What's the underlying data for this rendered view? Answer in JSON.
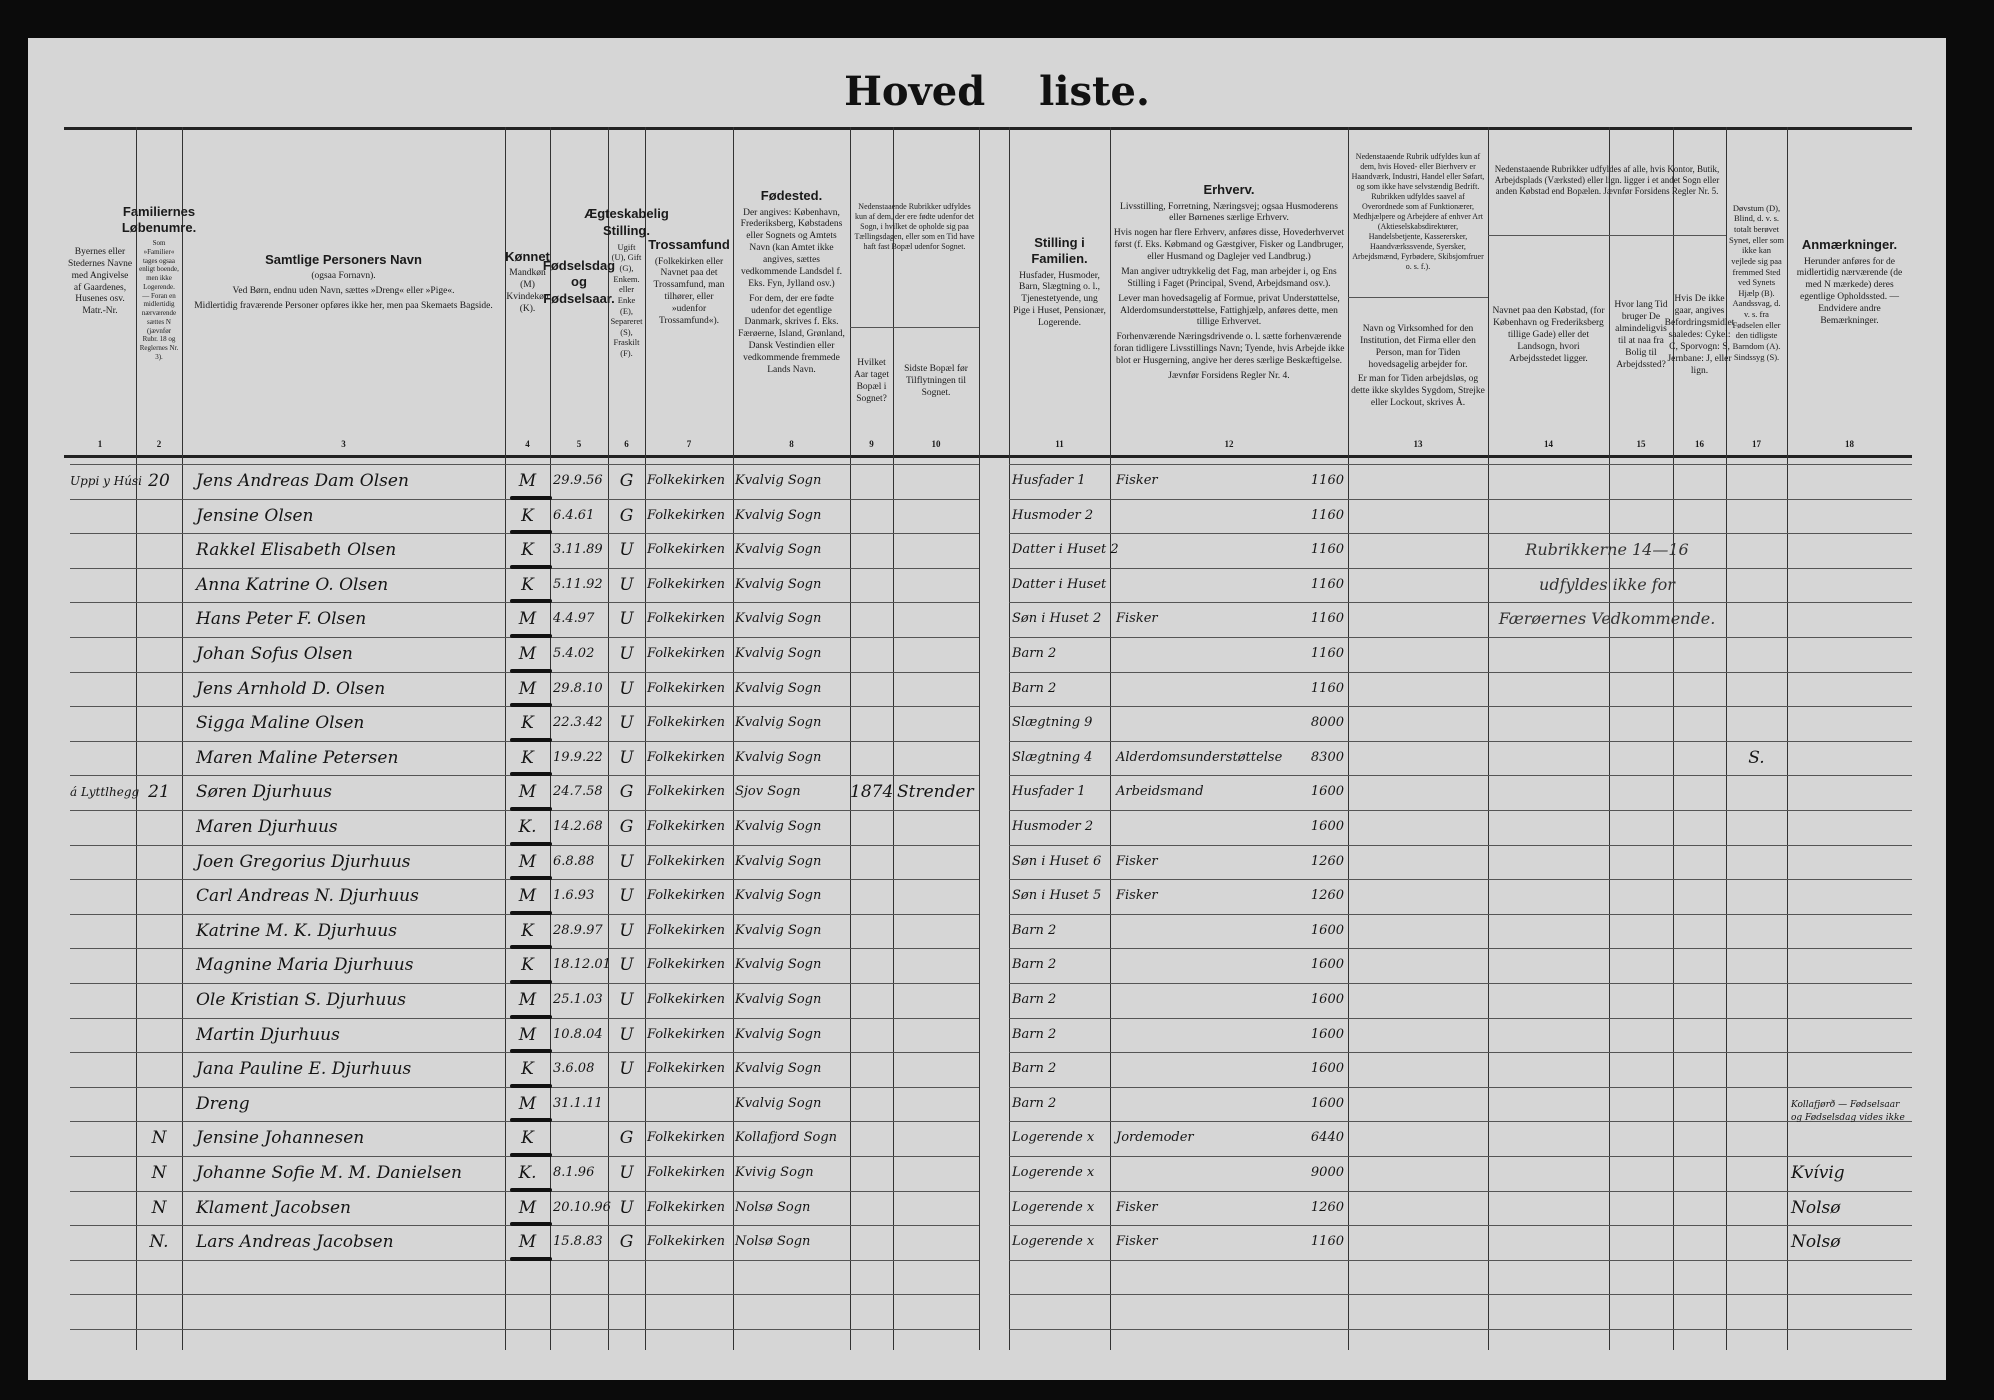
{
  "title": "Hoved liste.",
  "header": {
    "columns": [
      {
        "num": "1",
        "title": "",
        "text": [
          "Byernes eller Stedernes Navne med Angivelse af Gaardenes, Husenes osv. Matr.-Nr."
        ]
      },
      {
        "num": "2",
        "title": "Familiernes Løbenumre.",
        "text": [
          "Som »Familier« tages ogsaa enligt boende, men ikke Logerende. — Foran en midlertidig nærværende sættes N (jævnfør Rubr. 18 og Reglernes Nr. 3)."
        ]
      },
      {
        "num": "3",
        "title": "Samtlige Personers Navn",
        "text": [
          "(ogsaa Fornavn).",
          "Ved Børn, endnu uden Navn, sættes »Dreng« eller »Pige«.",
          "Midlertidig fraværende Personer opføres ikke her, men paa Skemaets Bagside."
        ]
      },
      {
        "num": "4",
        "title": "Kønnet",
        "text": [
          "Mandkøn (M) Kvindekøn (K)."
        ]
      },
      {
        "num": "5",
        "title": "Fødselsdag og Fødselsaar.",
        "text": []
      },
      {
        "num": "6",
        "title": "Ægteskabelig Stilling.",
        "text": [
          "Ugift (U), Gift (G), Enkem. eller Enke (E), Separeret (S), Fraskilt (F)."
        ]
      },
      {
        "num": "7",
        "title": "Trossamfund",
        "text": [
          "(Folkekirken eller Navnet paa det Trossamfund, man tilhører, eller »udenfor Trossamfund«)."
        ]
      },
      {
        "num": "8",
        "title": "Fødested.",
        "text": [
          "Der angives: København, Frederiksberg, Købstadens eller Sognets og Amtets Navn (kan Amtet ikke angives, sættes vedkommende Landsdel f. Eks. Fyn, Jylland osv.)",
          "For dem, der ere fødte udenfor det egentlige Danmark, skrives f. Eks. Færøerne, Island, Grønland, Dansk Vestindien eller vedkommende fremmede Lands Navn."
        ]
      },
      {
        "num": "9",
        "title": "",
        "text": [
          "Hvilket Aar taget Bopæl i Sognet?"
        ]
      },
      {
        "num": "10",
        "title": "",
        "text": [
          "Sidste Bopæl før Tilflytningen til Sognet."
        ]
      },
      {
        "num": "11",
        "title": "Stilling i Familien.",
        "text": [
          "Husfader, Husmoder, Barn, Slægtning o. l., Tjenestetyende, ung Pige i Huset, Pensionær, Logerende."
        ]
      },
      {
        "num": "12",
        "title": "Erhverv.",
        "text": [
          "Livsstilling, Forretning, Næringsvej; ogsaa Husmoderens eller Børnenes særlige Erhverv.",
          "Hvis nogen har flere Erhverv, anføres disse, Hovederhvervet først (f. Eks. Købmand og Gæstgiver, Fisker og Landbruger, eller Husmand og Daglejer ved Landbrug.)",
          "Man angiver udtrykkelig det Fag, man arbejder i, og Ens Stilling i Faget (Principal, Svend, Arbejdsmand osv.).",
          "Lever man hovedsagelig af Formue, privat Understøttelse, Alderdomsunderstøttelse, Fattighjælp, anføres dette, men tillige Erhvervet.",
          "Forhenværende Næringsdrivende o. l. sætte forhenværende foran tidligere Livsstillings Navn; Tyende, hvis Arbejde ikke blot er Husgerning, angive her deres særlige Beskæftigelse.",
          "Jævnfør Forsidens Regler Nr. 4."
        ]
      },
      {
        "num": "13",
        "title": "",
        "text": [
          "Navn og Virksomhed for den Institution, det Firma eller den Person, man for Tiden hovedsagelig arbejder for.",
          "Er man for Tiden arbejdsløs, og dette ikke skyldes Sygdom, Strejke eller Lockout, skrives Å."
        ]
      },
      {
        "num": "14",
        "title": "",
        "text": [
          "Navnet paa den Købstad, (for København og Frederiksberg tillige Gade) eller det Landsogn, hvori Arbejdsstedet ligger."
        ]
      },
      {
        "num": "15",
        "title": "",
        "text": [
          "Hvor lang Tid bruger De almindeligvis til at naa fra Bolig til Arbejdssted?"
        ]
      },
      {
        "num": "16",
        "title": "",
        "text": [
          "Hvis De ikke gaar, angives Befordringsmidlet saaledes: Cykel: C, Sporvogn: S, Jernbane: J, eller lign."
        ]
      },
      {
        "num": "17",
        "title": "",
        "text": [
          "Døvstum (D), Blind, d. v. s. totalt berøvet Synet, eller som ikke kan vejlede sig paa fremmed Sted ved Synets Hjælp (B). Aandssvag, d. v. s. fra Fødselen eller den tidligste Barndom (A). Sindssyg (S)."
        ]
      },
      {
        "num": "18",
        "title": "Anmærkninger.",
        "text": [
          "Herunder anføres for de midlertidig nærværende (de med N mærkede) deres egentlige Opholdssted. — Endvidere andre Bemærkninger."
        ]
      }
    ],
    "group_9_10": "Nedenstaaende Rubrikker udfyldes kun af dem, der ere fødte udenfor det Sogn, i hvilket de opholde sig paa Tællingsdagen, eller som en Tid have haft fast Bopæl udenfor Sognet.",
    "group_13": "Nedenstaaende Rubrik udfyldes kun af dem, hvis Hoved- eller Bierhverv er Haandværk, Industri, Handel eller Søfart, og som ikke have selvstændig Bedrift. Rubrikken udfyldes saavel af Overordnede som af Funktionærer, Medhjælpere og Arbejdere af enhver Art (Aktieselskabsdirektører, Handelsbetjente, Kasserersker, Haandværkssvende, Syersker, Arbejdsmænd, Fyrbødere, Skibsjomfruer o. s. f.).",
    "group_14_16": "Nedenstaaende Rubrikker udfyldes af alle, hvis Kontor, Butik, Arbejdsplads (Værksted) eller lign. ligger i et andet Sogn eller anden Købstad end Bopælen. Jævnfør Forsidens Regler Nr. 5."
  },
  "stamp_14_16": [
    "Rubrikkerne 14—16",
    "udfyldes ikke for",
    "Færøernes Vedkommende."
  ],
  "rows": [
    {
      "place": "Uppi y Húsi",
      "family_no": "20",
      "name": "Jens Andreas Dam Olsen",
      "sex": "M",
      "birth": "29.9.56",
      "marital": "G",
      "religion": "Folkekirken",
      "birthplace": "Kvalvig Sogn",
      "year_moved": "",
      "last_residence": "",
      "family_position": "Husfader 1",
      "occupation": "Fisker",
      "income": "1160",
      "col17": "",
      "remarks": ""
    },
    {
      "place": "",
      "family_no": "",
      "name": "Jensine Olsen",
      "sex": "K",
      "birth": "6.4.61",
      "marital": "G",
      "religion": "Folkekirken",
      "birthplace": "Kvalvig Sogn",
      "year_moved": "",
      "last_residence": "",
      "family_position": "Husmoder 2",
      "occupation": "",
      "income": "1160",
      "col17": "",
      "remarks": ""
    },
    {
      "place": "",
      "family_no": "",
      "name": "Rakkel Elisabeth Olsen",
      "sex": "K",
      "birth": "3.11.89",
      "marital": "U",
      "religion": "Folkekirken",
      "birthplace": "Kvalvig Sogn",
      "year_moved": "",
      "last_residence": "",
      "family_position": "Datter i Huset 2",
      "occupation": "",
      "income": "1160",
      "col17": "",
      "remarks": ""
    },
    {
      "place": "",
      "family_no": "",
      "name": "Anna Katrine O. Olsen",
      "sex": "K",
      "birth": "5.11.92",
      "marital": "U",
      "religion": "Folkekirken",
      "birthplace": "Kvalvig Sogn",
      "year_moved": "",
      "last_residence": "",
      "family_position": "Datter i Huset",
      "occupation": "",
      "income": "1160",
      "col17": "",
      "remarks": ""
    },
    {
      "place": "",
      "family_no": "",
      "name": "Hans Peter F. Olsen",
      "sex": "M",
      "birth": "4.4.97",
      "marital": "U",
      "religion": "Folkekirken",
      "birthplace": "Kvalvig Sogn",
      "year_moved": "",
      "last_residence": "",
      "family_position": "Søn i Huset 2",
      "occupation": "Fisker",
      "income": "1160",
      "col17": "",
      "remarks": ""
    },
    {
      "place": "",
      "family_no": "",
      "name": "Johan Sofus Olsen",
      "sex": "M",
      "birth": "5.4.02",
      "marital": "U",
      "religion": "Folkekirken",
      "birthplace": "Kvalvig Sogn",
      "year_moved": "",
      "last_residence": "",
      "family_position": "Barn 2",
      "occupation": "",
      "income": "1160",
      "col17": "",
      "remarks": ""
    },
    {
      "place": "",
      "family_no": "",
      "name": "Jens Arnhold D. Olsen",
      "sex": "M",
      "birth": "29.8.10",
      "marital": "U",
      "religion": "Folkekirken",
      "birthplace": "Kvalvig Sogn",
      "year_moved": "",
      "last_residence": "",
      "family_position": "Barn 2",
      "occupation": "",
      "income": "1160",
      "col17": "",
      "remarks": ""
    },
    {
      "place": "",
      "family_no": "",
      "name": "Sigga Maline Olsen",
      "sex": "K",
      "birth": "22.3.42",
      "marital": "U",
      "religion": "Folkekirken",
      "birthplace": "Kvalvig Sogn",
      "year_moved": "",
      "last_residence": "",
      "family_position": "Slægtning 9",
      "occupation": "",
      "income": "8000",
      "col17": "",
      "remarks": ""
    },
    {
      "place": "",
      "family_no": "",
      "name": "Maren Maline Petersen",
      "sex": "K",
      "birth": "19.9.22",
      "marital": "U",
      "religion": "Folkekirken",
      "birthplace": "Kvalvig Sogn",
      "year_moved": "",
      "last_residence": "",
      "family_position": "Slægtning 4",
      "occupation": "Alderdomsunderstøttelse",
      "income": "8300",
      "col17": "S.",
      "remarks": ""
    },
    {
      "place": "á Lyttlhegg",
      "family_no": "21",
      "name": "Søren Djurhuus",
      "sex": "M",
      "birth": "24.7.58",
      "marital": "G",
      "religion": "Folkekirken",
      "birthplace": "Sjov Sogn",
      "year_moved": "1874",
      "last_residence": "Strender",
      "family_position": "Husfader 1",
      "occupation": "Arbeidsmand",
      "income": "1600",
      "col17": "",
      "remarks": ""
    },
    {
      "place": "",
      "family_no": "",
      "name": "Maren Djurhuus",
      "sex": "K.",
      "birth": "14.2.68",
      "marital": "G",
      "religion": "Folkekirken",
      "birthplace": "Kvalvig Sogn",
      "year_moved": "",
      "last_residence": "",
      "family_position": "Husmoder 2",
      "occupation": "",
      "income": "1600",
      "col17": "",
      "remarks": ""
    },
    {
      "place": "",
      "family_no": "",
      "name": "Joen Gregorius Djurhuus",
      "sex": "M",
      "birth": "6.8.88",
      "marital": "U",
      "religion": "Folkekirken",
      "birthplace": "Kvalvig Sogn",
      "year_moved": "",
      "last_residence": "",
      "family_position": "Søn i Huset 6",
      "occupation": "Fisker",
      "income": "1260",
      "col17": "",
      "remarks": ""
    },
    {
      "place": "",
      "family_no": "",
      "name": "Carl Andreas N. Djurhuus",
      "sex": "M",
      "birth": "1.6.93",
      "marital": "U",
      "religion": "Folkekirken",
      "birthplace": "Kvalvig Sogn",
      "year_moved": "",
      "last_residence": "",
      "family_position": "Søn i Huset 5",
      "occupation": "Fisker",
      "income": "1260",
      "col17": "",
      "remarks": ""
    },
    {
      "place": "",
      "family_no": "",
      "name": "Katrine M. K. Djurhuus",
      "sex": "K",
      "birth": "28.9.97",
      "marital": "U",
      "religion": "Folkekirken",
      "birthplace": "Kvalvig Sogn",
      "year_moved": "",
      "last_residence": "",
      "family_position": "Barn 2",
      "occupation": "",
      "income": "1600",
      "col17": "",
      "remarks": ""
    },
    {
      "place": "",
      "family_no": "",
      "name": "Magnine Maria Djurhuus",
      "sex": "K",
      "birth": "18.12.01",
      "marital": "U",
      "religion": "Folkekirken",
      "birthplace": "Kvalvig Sogn",
      "year_moved": "",
      "last_residence": "",
      "family_position": "Barn 2",
      "occupation": "",
      "income": "1600",
      "col17": "",
      "remarks": ""
    },
    {
      "place": "",
      "family_no": "",
      "name": "Ole Kristian S. Djurhuus",
      "sex": "M",
      "birth": "25.1.03",
      "marital": "U",
      "religion": "Folkekirken",
      "birthplace": "Kvalvig Sogn",
      "year_moved": "",
      "last_residence": "",
      "family_position": "Barn 2",
      "occupation": "",
      "income": "1600",
      "col17": "",
      "remarks": ""
    },
    {
      "place": "",
      "family_no": "",
      "name": "Martin Djurhuus",
      "sex": "M",
      "birth": "10.8.04",
      "marital": "U",
      "religion": "Folkekirken",
      "birthplace": "Kvalvig Sogn",
      "year_moved": "",
      "last_residence": "",
      "family_position": "Barn 2",
      "occupation": "",
      "income": "1600",
      "col17": "",
      "remarks": ""
    },
    {
      "place": "",
      "family_no": "",
      "name": "Jana Pauline E. Djurhuus",
      "sex": "K",
      "birth": "3.6.08",
      "marital": "U",
      "religion": "Folkekirken",
      "birthplace": "Kvalvig Sogn",
      "year_moved": "",
      "last_residence": "",
      "family_position": "Barn 2",
      "occupation": "",
      "income": "1600",
      "col17": "",
      "remarks": ""
    },
    {
      "place": "",
      "family_no": "",
      "name": "Dreng",
      "sex": "M",
      "birth": "31.1.11",
      "marital": "",
      "religion": "",
      "birthplace": "Kvalvig Sogn",
      "year_moved": "",
      "last_residence": "",
      "family_position": "Barn 2",
      "occupation": "",
      "income": "1600",
      "col17": "",
      "remarks": ""
    },
    {
      "place": "",
      "family_no": "N",
      "name": "Jensine Johannesen",
      "sex": "K",
      "birth": "",
      "marital": "G",
      "religion": "Folkekirken",
      "birthplace": "Kollafjord Sogn",
      "year_moved": "",
      "last_residence": "",
      "family_position": "Logerende x",
      "occupation": "Jordemoder",
      "income": "6440",
      "col17": "",
      "remarks": "Kollafjørð — Fødselsaar og Fødselsdag vides ikke"
    },
    {
      "place": "",
      "family_no": "N",
      "name": "Johanne Sofie M. M. Danielsen",
      "sex": "K.",
      "birth": "8.1.96",
      "marital": "U",
      "religion": "Folkekirken",
      "birthplace": "Kvivig Sogn",
      "year_moved": "",
      "last_residence": "",
      "family_position": "Logerende x",
      "occupation": "",
      "income": "9000",
      "col17": "",
      "remarks": "Kvívig"
    },
    {
      "place": "",
      "family_no": "N",
      "name": "Klament Jacobsen",
      "sex": "M",
      "birth": "20.10.96",
      "marital": "U",
      "religion": "Folkekirken",
      "birthplace": "Nolsø Sogn",
      "year_moved": "",
      "last_residence": "",
      "family_position": "Logerende x",
      "occupation": "Fisker",
      "income": "1260",
      "col17": "",
      "remarks": "Nolsø"
    },
    {
      "place": "",
      "family_no": "N.",
      "name": "Lars Andreas Jacobsen",
      "sex": "M",
      "birth": "15.8.83",
      "marital": "G",
      "religion": "Folkekirken",
      "birthplace": "Nolsø Sogn",
      "year_moved": "",
      "last_residence": "",
      "family_position": "Logerende x",
      "occupation": "Fisker",
      "income": "1160",
      "col17": "",
      "remarks": "Nolsø"
    }
  ]
}
